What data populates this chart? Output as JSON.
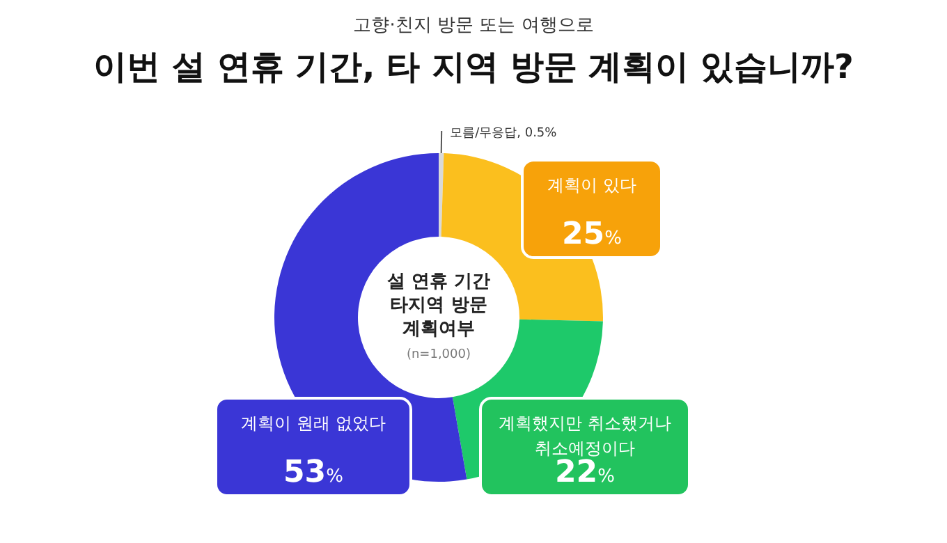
{
  "chart_data": {
    "type": "donut",
    "subtitle": "고향·친지 방문 또는 여행으로",
    "title": "이번 설 연휴 기간, 타 지역 방문 계획이 있습니까?",
    "categories": [
      "모름/무응답",
      "계획이 있다",
      "계획했지만 취소했거나 취소예정이다",
      "계획이 원래 없었다"
    ],
    "values": [
      0.5,
      25,
      22,
      53
    ],
    "value_labels": [
      "0.5%",
      "25%",
      "22%",
      "53%"
    ],
    "colors": [
      "#d9d9d9",
      "#fbbf1e",
      "#1ec96a",
      "#3a36d6"
    ],
    "annotations": [
      "설 연휴 기간",
      "타지역 방문",
      "계획여부",
      "(n=1,000)"
    ]
  }
}
